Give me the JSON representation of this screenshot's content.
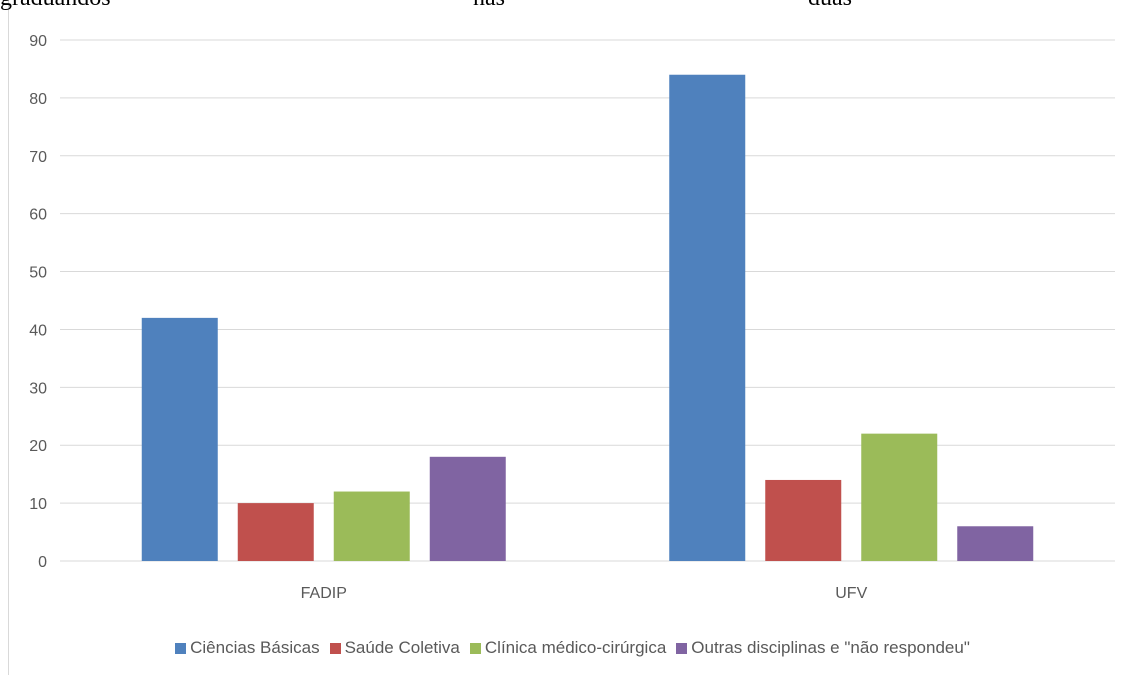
{
  "header_fragments": [
    "graduandos",
    "nas",
    "duas"
  ],
  "chart_data": {
    "type": "bar",
    "title": "",
    "xlabel": "",
    "ylabel": "",
    "categories": [
      "FADIP",
      "UFV"
    ],
    "series": [
      {
        "name": "Ciências Básicas",
        "values": [
          42,
          84
        ],
        "color": "#4f81bd"
      },
      {
        "name": "Saúde Coletiva",
        "values": [
          10,
          14
        ],
        "color": "#c0504d"
      },
      {
        "name": "Clínica médico-cirúrgica",
        "values": [
          12,
          22
        ],
        "color": "#9bbb59"
      },
      {
        "name": "Outras disciplinas e \"não respondeu\"",
        "values": [
          18,
          6
        ],
        "color": "#8064a2"
      }
    ],
    "ylim": [
      0,
      90
    ],
    "yticks": [
      0,
      10,
      20,
      30,
      40,
      50,
      60,
      70,
      80,
      90
    ],
    "grid": true,
    "legend_position": "bottom"
  }
}
